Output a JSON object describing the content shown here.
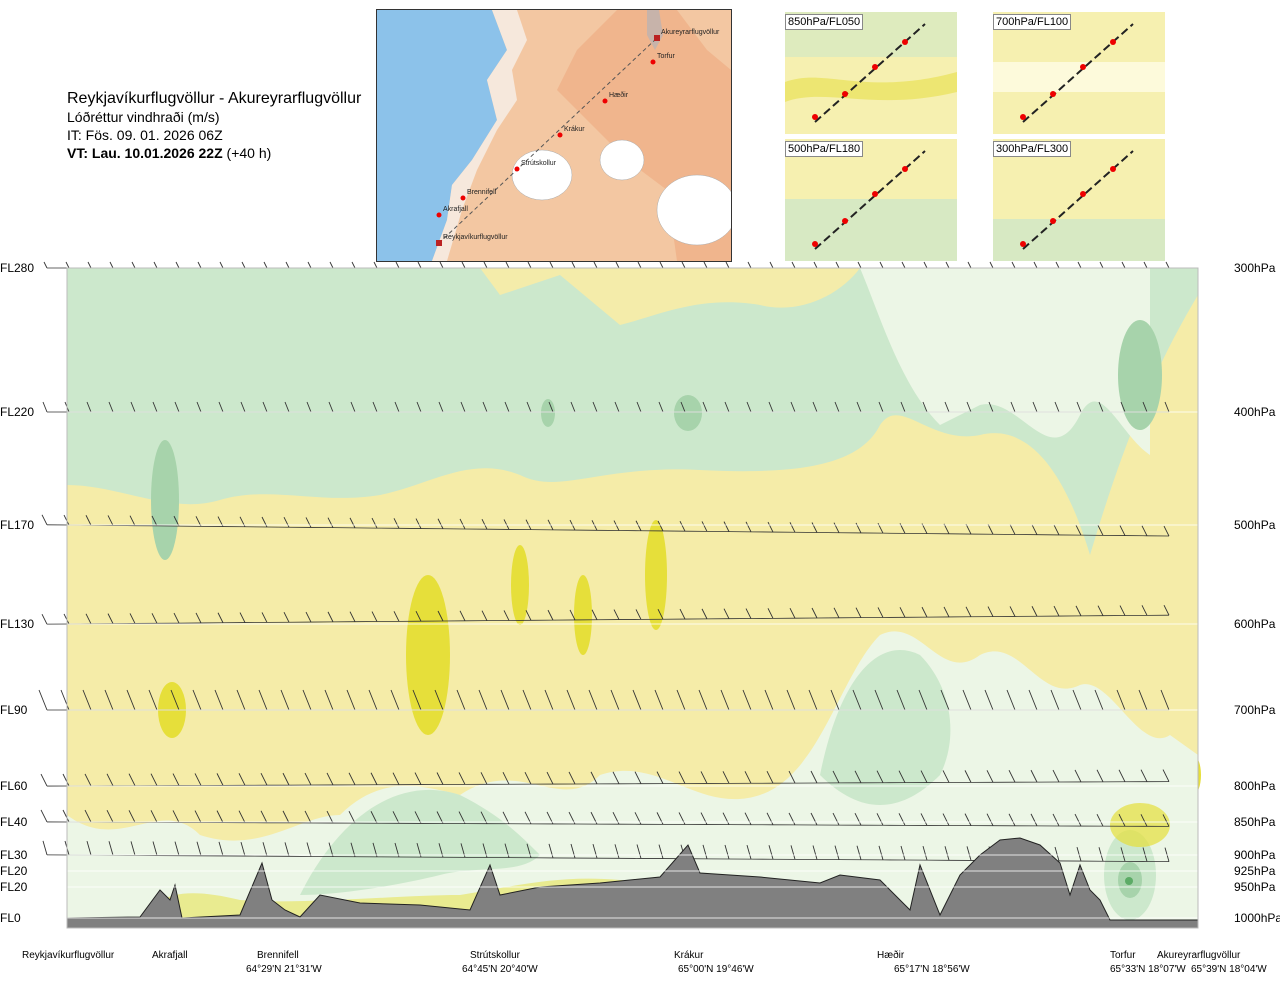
{
  "title": {
    "route": "Reykjavíkurflugvöllur - Akureyrarflugvöllur",
    "parameter": "Lóðréttur vindhraði (m/s)",
    "issue_time": "IT: Fös. 09. 01. 2026 06Z",
    "valid_time_bold": "VT: Lau. 10.01.2026 22Z",
    "valid_time_lead": "(+40 h)"
  },
  "map": {
    "points": [
      "Akureyrarflugvöllur",
      "Torfur",
      "Hæðir",
      "Krákur",
      "Strútskollur",
      "Brennifell",
      "Akrafjall",
      "Reykjavíkurflugvöllur"
    ]
  },
  "thumbnails": [
    {
      "label": "850hPa/FL050"
    },
    {
      "label": "700hPa/FL100"
    },
    {
      "label": "500hPa/FL180"
    },
    {
      "label": "300hPa/FL300"
    }
  ],
  "colors": {
    "strong_down": "#e6df3a",
    "moderate_down": "#f5eca8",
    "weak": "#fffde6",
    "weak_up": "#ecf6e6",
    "moderate_up": "#cce8cc",
    "strong_up": "#a7d3ab",
    "very_strong_up": "#5cab66",
    "terrain": "#808080"
  },
  "chart_data": {
    "type": "heatmap",
    "title": "Reykjavíkurflugvöllur - Akureyrarflugvöllur",
    "quantity": "Lóðréttur vindhraði (m/s)",
    "left_axis_labels": [
      "FL280",
      "FL220",
      "FL170",
      "FL130",
      "FL90",
      "FL60",
      "FL40",
      "FL30",
      "FL20",
      "FL20",
      "FL0"
    ],
    "right_axis_labels": [
      "300hPa",
      "400hPa",
      "500hPa",
      "600hPa",
      "700hPa",
      "800hPa",
      "850hPa",
      "900hPa",
      "925hPa",
      "950hPa",
      "1000hPa"
    ],
    "pressure_levels_hpa": [
      300,
      400,
      500,
      600,
      700,
      800,
      850,
      900,
      925,
      950,
      1000
    ],
    "waypoints": [
      {
        "name": "Reykjavíkurflugvöllur",
        "coord": ""
      },
      {
        "name": "Akrafjall",
        "coord": ""
      },
      {
        "name": "Brennifell",
        "coord": "64°29'N 21°31'W"
      },
      {
        "name": "Strútskollur",
        "coord": "64°45'N 20°40'W"
      },
      {
        "name": "Krákur",
        "coord": "65°00'N 19°46'W"
      },
      {
        "name": "Hæðir",
        "coord": "65°17'N 18°56'W"
      },
      {
        "name": "Torfur",
        "coord": "65°33'N 18°07'W"
      },
      {
        "name": "Akureyrarflugvöllur",
        "coord": "65°39'N 18°04'W"
      }
    ]
  }
}
